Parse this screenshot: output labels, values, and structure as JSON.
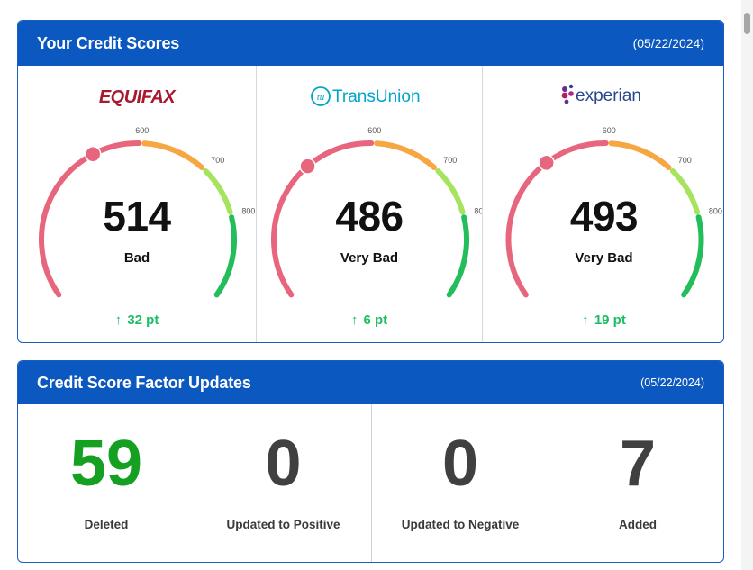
{
  "credit_scores": {
    "title": "Your Credit Scores",
    "date": "(05/22/2024)",
    "bureaus": [
      {
        "name": "EQUIFAX",
        "score": "514",
        "rating": "Bad",
        "change": "32 pt",
        "score_value": 514,
        "logo_color": "#a6192e"
      },
      {
        "name": "TransUnion",
        "logo_mark": "tu",
        "score": "486",
        "rating": "Very Bad",
        "change": "6 pt",
        "score_value": 486,
        "logo_color": "#00a6ca"
      },
      {
        "name": "experian",
        "score": "493",
        "rating": "Very Bad",
        "change": "19 pt",
        "score_value": 493,
        "logo_color": "#26478d"
      }
    ],
    "gauge_ticks": [
      "600",
      "700",
      "800"
    ],
    "gauge_range": [
      300,
      850
    ],
    "gauge_segments": [
      {
        "from": 300,
        "to": 580,
        "color": "#e8667d"
      },
      {
        "from": 580,
        "to": 670,
        "color": "#f6a742"
      },
      {
        "from": 670,
        "to": 740,
        "color": "#a6e35e"
      },
      {
        "from": 740,
        "to": 850,
        "color": "#23bd5c"
      }
    ],
    "change_arrow": "↑"
  },
  "factor_updates": {
    "title": "Credit Score Factor Updates",
    "date": "(05/22/2024)",
    "items": [
      {
        "count": "59",
        "label": "Deleted"
      },
      {
        "count": "0",
        "label": "Updated to Positive"
      },
      {
        "count": "0",
        "label": "Updated to Negative"
      },
      {
        "count": "7",
        "label": "Added"
      }
    ]
  }
}
